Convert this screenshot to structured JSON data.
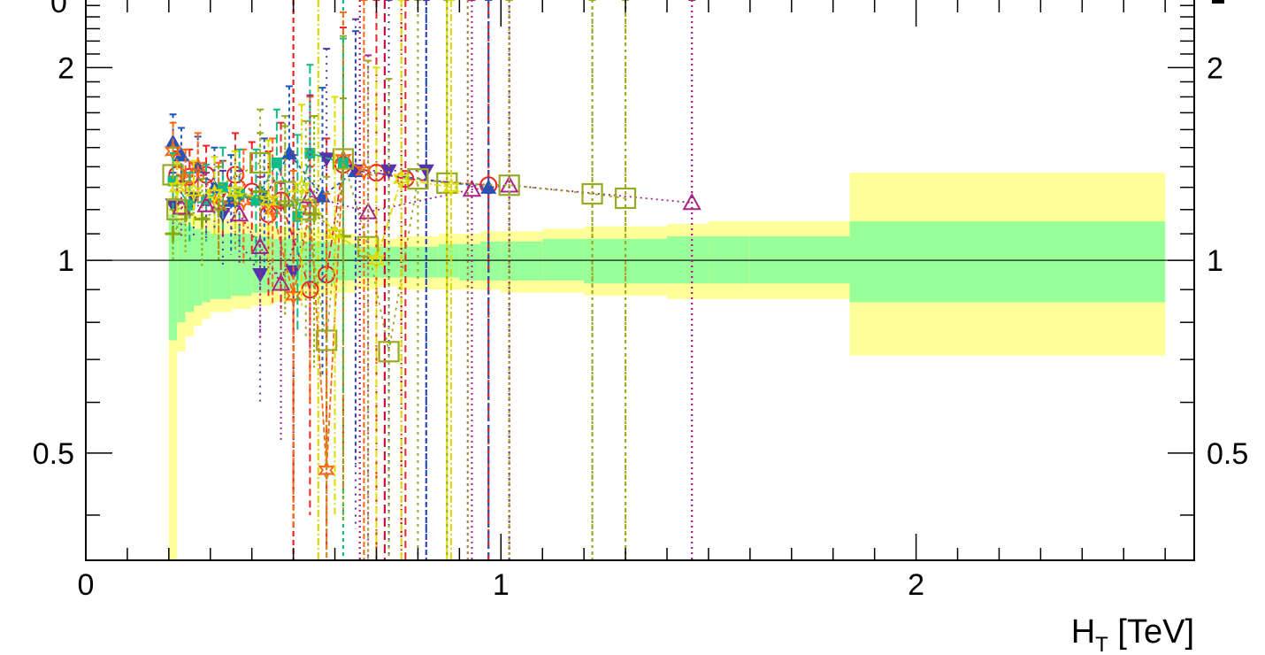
{
  "chart_data": {
    "type": "scatter",
    "title": "",
    "xlabel": "H",
    "xlabel_sub": "T",
    "xlabel_unit": " [TeV]",
    "ylabel": "",
    "xlim": [
      0,
      2.67
    ],
    "ylim": [
      0.34,
      2.55
    ],
    "y_scale": "log",
    "x_ticks": [
      {
        "v": 0,
        "label": "0"
      },
      {
        "v": 1,
        "label": "1"
      },
      {
        "v": 2,
        "label": "2"
      }
    ],
    "y_ticks": [
      {
        "v": 0.5,
        "label": "0.5"
      },
      {
        "v": 1,
        "label": "1"
      },
      {
        "v": 2,
        "label": "2"
      }
    ],
    "clipped_label": "0",
    "reference_line": 1,
    "band_colors": {
      "inner": "#99ff99",
      "outer": "#ffff99"
    },
    "bands": [
      {
        "x0": 0.2,
        "x1": 0.22,
        "inner": [
          0.75,
          1.18
        ],
        "outer": [
          0.34,
          1.26
        ]
      },
      {
        "x0": 0.22,
        "x1": 0.24,
        "inner": [
          0.8,
          1.15
        ],
        "outer": [
          0.72,
          1.22
        ]
      },
      {
        "x0": 0.24,
        "x1": 0.26,
        "inner": [
          0.83,
          1.13
        ],
        "outer": [
          0.76,
          1.2
        ]
      },
      {
        "x0": 0.26,
        "x1": 0.28,
        "inner": [
          0.85,
          1.12
        ],
        "outer": [
          0.79,
          1.18
        ]
      },
      {
        "x0": 0.28,
        "x1": 0.3,
        "inner": [
          0.86,
          1.11
        ],
        "outer": [
          0.81,
          1.17
        ]
      },
      {
        "x0": 0.3,
        "x1": 0.35,
        "inner": [
          0.87,
          1.1
        ],
        "outer": [
          0.83,
          1.16
        ]
      },
      {
        "x0": 0.35,
        "x1": 0.4,
        "inner": [
          0.88,
          1.1
        ],
        "outer": [
          0.84,
          1.15
        ]
      },
      {
        "x0": 0.4,
        "x1": 0.45,
        "inner": [
          0.89,
          1.09
        ],
        "outer": [
          0.85,
          1.14
        ]
      },
      {
        "x0": 0.45,
        "x1": 0.5,
        "inner": [
          0.9,
          1.08
        ],
        "outer": [
          0.86,
          1.13
        ]
      },
      {
        "x0": 0.5,
        "x1": 0.55,
        "inner": [
          0.91,
          1.07
        ],
        "outer": [
          0.87,
          1.12
        ]
      },
      {
        "x0": 0.55,
        "x1": 0.6,
        "inner": [
          0.92,
          1.07
        ],
        "outer": [
          0.88,
          1.11
        ]
      },
      {
        "x0": 0.6,
        "x1": 0.65,
        "inner": [
          0.93,
          1.06
        ],
        "outer": [
          0.89,
          1.1
        ]
      },
      {
        "x0": 0.65,
        "x1": 0.7,
        "inner": [
          0.94,
          1.05
        ],
        "outer": [
          0.9,
          1.09
        ]
      },
      {
        "x0": 0.7,
        "x1": 0.75,
        "inner": [
          0.94,
          1.05
        ],
        "outer": [
          0.91,
          1.08
        ]
      },
      {
        "x0": 0.75,
        "x1": 0.8,
        "inner": [
          0.94,
          1.05
        ],
        "outer": [
          0.9,
          1.09
        ]
      },
      {
        "x0": 0.8,
        "x1": 0.85,
        "inner": [
          0.94,
          1.05
        ],
        "outer": [
          0.9,
          1.09
        ]
      },
      {
        "x0": 0.85,
        "x1": 0.9,
        "inner": [
          0.94,
          1.06
        ],
        "outer": [
          0.9,
          1.1
        ]
      },
      {
        "x0": 0.9,
        "x1": 0.95,
        "inner": [
          0.93,
          1.06
        ],
        "outer": [
          0.9,
          1.1
        ]
      },
      {
        "x0": 0.95,
        "x1": 1.0,
        "inner": [
          0.93,
          1.07
        ],
        "outer": [
          0.9,
          1.11
        ]
      },
      {
        "x0": 1.0,
        "x1": 1.1,
        "inner": [
          0.93,
          1.07
        ],
        "outer": [
          0.89,
          1.11
        ]
      },
      {
        "x0": 1.1,
        "x1": 1.2,
        "inner": [
          0.93,
          1.08
        ],
        "outer": [
          0.89,
          1.12
        ]
      },
      {
        "x0": 1.2,
        "x1": 1.3,
        "inner": [
          0.92,
          1.08
        ],
        "outer": [
          0.88,
          1.13
        ]
      },
      {
        "x0": 1.3,
        "x1": 1.4,
        "inner": [
          0.92,
          1.08
        ],
        "outer": [
          0.88,
          1.13
        ]
      },
      {
        "x0": 1.4,
        "x1": 1.5,
        "inner": [
          0.92,
          1.09
        ],
        "outer": [
          0.87,
          1.14
        ]
      },
      {
        "x0": 1.5,
        "x1": 1.6,
        "inner": [
          0.92,
          1.09
        ],
        "outer": [
          0.87,
          1.15
        ]
      },
      {
        "x0": 1.6,
        "x1": 1.84,
        "inner": [
          0.92,
          1.09
        ],
        "outer": [
          0.87,
          1.15
        ]
      },
      {
        "x0": 1.84,
        "x1": 2.6,
        "inner": [
          0.86,
          1.15
        ],
        "outer": [
          0.71,
          1.37
        ]
      }
    ],
    "series": [
      {
        "color": "#ee2222",
        "marker": "circle",
        "dash": "8,5",
        "points": [
          [
            0.22,
            1.36,
            0.12
          ],
          [
            0.25,
            1.35,
            0.14
          ],
          [
            0.29,
            1.36,
            0.15
          ],
          [
            0.33,
            1.25,
            0.18
          ],
          [
            0.36,
            1.36,
            0.22
          ],
          [
            0.4,
            1.28,
            0.25
          ],
          [
            0.44,
            1.18,
            0.3
          ],
          [
            0.47,
            1.24,
            0.4
          ],
          [
            0.54,
            0.9,
            0.5
          ],
          [
            0.58,
            0.95,
            0.6
          ],
          [
            0.62,
            1.41,
            0.9
          ],
          [
            0.7,
            1.37,
            1.2
          ],
          [
            0.77,
            1.34,
            1.4
          ],
          [
            0.97,
            1.31,
            1.6
          ]
        ]
      },
      {
        "color": "#2255bb",
        "marker": "tri-up",
        "dash": "4,4",
        "points": [
          [
            0.21,
            1.53,
            0.16
          ],
          [
            0.23,
            1.46,
            0.15
          ],
          [
            0.27,
            1.4,
            0.16
          ],
          [
            0.31,
            1.3,
            0.2
          ],
          [
            0.35,
            1.24,
            0.22
          ],
          [
            0.43,
            1.25,
            0.3
          ],
          [
            0.49,
            1.47,
            0.4
          ],
          [
            0.57,
            1.26,
            0.6
          ],
          [
            0.65,
            1.38,
            0.9
          ],
          [
            0.97,
            1.3,
            1.6
          ]
        ]
      },
      {
        "color": "#5533aa",
        "marker": "tri-down",
        "dash": "2,6",
        "points": [
          [
            0.21,
            1.22,
            0.15
          ],
          [
            0.26,
            1.25,
            0.17
          ],
          [
            0.33,
            1.18,
            0.2
          ],
          [
            0.42,
            0.95,
            0.35
          ],
          [
            0.5,
            0.96,
            0.5
          ],
          [
            0.58,
            1.44,
            0.7
          ],
          [
            0.65,
            1.38,
            1.0
          ],
          [
            0.73,
            1.38,
            1.3
          ],
          [
            0.82,
            1.38,
            1.5
          ]
        ]
      },
      {
        "color": "#ff6611",
        "marker": "star",
        "dash": "6,3",
        "points": [
          [
            0.21,
            1.48,
            0.16
          ],
          [
            0.24,
            1.34,
            0.15
          ],
          [
            0.27,
            1.4,
            0.18
          ],
          [
            0.32,
            1.22,
            0.2
          ],
          [
            0.38,
            1.24,
            0.25
          ],
          [
            0.45,
            1.2,
            0.35
          ],
          [
            0.5,
            0.88,
            0.5
          ],
          [
            0.54,
            1.2,
            0.6
          ],
          [
            0.58,
            0.47,
            0.8
          ],
          [
            0.62,
            1.44,
            1.0
          ],
          [
            0.67,
            1.38,
            1.2
          ]
        ]
      },
      {
        "color": "#11bb88",
        "marker": "square-filled",
        "dash": "10,4",
        "points": [
          [
            0.21,
            1.33,
            0.14
          ],
          [
            0.25,
            1.22,
            0.15
          ],
          [
            0.29,
            1.24,
            0.17
          ],
          [
            0.33,
            1.3,
            0.2
          ],
          [
            0.37,
            1.27,
            0.22
          ],
          [
            0.41,
            1.24,
            0.25
          ],
          [
            0.46,
            1.42,
            0.3
          ],
          [
            0.51,
            1.17,
            0.4
          ],
          [
            0.54,
            1.47,
            0.55
          ],
          [
            0.62,
            1.42,
            0.8
          ]
        ]
      },
      {
        "color": "#88aa11",
        "marker": "cross",
        "dash": "3,3",
        "points": [
          [
            0.21,
            1.1,
            0.1
          ],
          [
            0.24,
            1.18,
            0.15
          ],
          [
            0.28,
            1.16,
            0.18
          ],
          [
            0.32,
            1.2,
            0.2
          ],
          [
            0.36,
            1.26,
            0.22
          ],
          [
            0.42,
            1.28,
            0.3
          ],
          [
            0.48,
            1.22,
            0.4
          ],
          [
            0.55,
            1.18,
            0.5
          ],
          [
            0.62,
            1.09,
            0.7
          ]
        ]
      },
      {
        "color": "#aa2288",
        "marker": "tri-up-open",
        "dash": "2,4",
        "points": [
          [
            0.23,
            1.21,
            0.12
          ],
          [
            0.29,
            1.22,
            0.15
          ],
          [
            0.37,
            1.18,
            0.2
          ],
          [
            0.42,
            1.05,
            0.3
          ],
          [
            0.47,
            0.92,
            0.4
          ],
          [
            0.54,
            1.26,
            0.55
          ],
          [
            0.68,
            1.19,
            0.9
          ],
          [
            0.93,
            1.29,
            1.4
          ],
          [
            1.02,
            1.31,
            1.6
          ],
          [
            1.46,
            1.23,
            1.8
          ]
        ]
      },
      {
        "color": "#99aa22",
        "marker": "square-open",
        "dash": "3,5",
        "points": [
          [
            0.21,
            1.36,
            0.14
          ],
          [
            0.22,
            1.2,
            0.12
          ],
          [
            0.42,
            1.42,
            0.3
          ],
          [
            0.48,
            1.28,
            0.4
          ],
          [
            0.53,
            1.2,
            0.45
          ],
          [
            0.58,
            0.75,
            0.6
          ],
          [
            0.62,
            1.44,
            0.8
          ],
          [
            0.68,
            1.05,
            1.0
          ],
          [
            0.73,
            0.72,
            1.2
          ],
          [
            0.8,
            1.34,
            1.4
          ],
          [
            0.87,
            1.32,
            1.5
          ],
          [
            1.02,
            1.31,
            1.6
          ],
          [
            1.22,
            1.27,
            1.7
          ],
          [
            1.3,
            1.25,
            1.8
          ]
        ]
      },
      {
        "color": "#dddd00",
        "marker": "star-open",
        "dash": "8,3,2,3",
        "points": [
          [
            0.22,
            1.3,
            0.12
          ],
          [
            0.26,
            1.28,
            0.15
          ],
          [
            0.31,
            1.27,
            0.18
          ],
          [
            0.36,
            1.28,
            0.2
          ],
          [
            0.44,
            1.24,
            0.3
          ],
          [
            0.52,
            1.3,
            0.45
          ],
          [
            0.6,
            1.1,
            0.7
          ],
          [
            0.7,
            1.0,
            1.0
          ],
          [
            0.76,
            1.34,
            1.3
          ],
          [
            0.88,
            1.3,
            1.6
          ]
        ]
      }
    ],
    "vertical_lines": [
      {
        "x": 0.5,
        "color": "#ee2222",
        "dash": "6,4"
      },
      {
        "x": 0.56,
        "color": "#dddd00",
        "dash": "8,3,2,3"
      },
      {
        "x": 0.62,
        "color": "#11bb88",
        "dash": "4,4"
      },
      {
        "x": 0.66,
        "color": "#aa2288",
        "dash": "2,4"
      },
      {
        "x": 0.72,
        "color": "#cc1144",
        "dash": "10,5"
      },
      {
        "x": 0.76,
        "color": "#cc1144",
        "dash": "2,3"
      },
      {
        "x": 0.82,
        "color": "#2255bb",
        "dash": "6,3"
      },
      {
        "x": 0.87,
        "color": "#dddd00",
        "dash": ""
      },
      {
        "x": 0.92,
        "color": "#aa8844",
        "dash": "3,4"
      },
      {
        "x": 0.97,
        "color": "#cc1144",
        "dash": "8,4"
      },
      {
        "x": 1.02,
        "color": "#aa8844",
        "dash": "3,3"
      },
      {
        "x": 1.22,
        "color": "#99aa22",
        "dash": "3,4"
      },
      {
        "x": 1.3,
        "color": "#aaaa22",
        "dash": "3,4"
      },
      {
        "x": 1.46,
        "color": "#ee2288",
        "dash": "2,4"
      }
    ]
  }
}
